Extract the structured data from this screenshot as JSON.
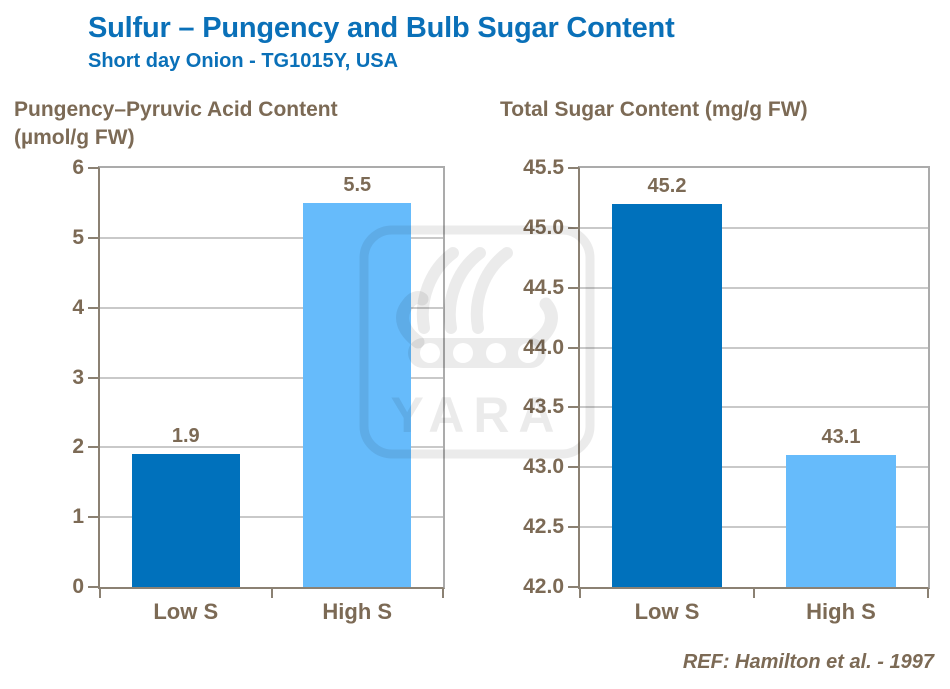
{
  "header": {
    "title": "Sulfur – Pungency and Bulb Sugar Content",
    "subtitle": "Short day Onion - TG1015Y, USA"
  },
  "footer": {
    "ref": "REF: Hamilton et al. - 1997"
  },
  "watermark": {
    "name": "yara-logo",
    "text": "YARA"
  },
  "colors": {
    "title_blue": "#0a70b8",
    "text_brown": "#7c6a55",
    "bar_dark_blue": "#0071bc",
    "bar_light_blue": "#66bbfb",
    "gridline": "#c9c9c9",
    "axis_line": "#8b8173",
    "border_light": "#ababab",
    "watermark_gray": "rgba(0,0,0,0.08)"
  },
  "chart_data": [
    {
      "type": "bar",
      "title": "Pungency–Pyruvic Acid Content",
      "title_line2": "(µmol/g FW)",
      "categories": [
        "Low S",
        "High S"
      ],
      "values": [
        1.9,
        5.5
      ],
      "data_labels": [
        "1.9",
        "5.5"
      ],
      "bar_colors": [
        "#0071bc",
        "#66bbfb"
      ],
      "ylim": [
        0,
        6
      ],
      "ytick_step": 1,
      "ytick_labels": [
        "0",
        "1",
        "2",
        "3",
        "4",
        "5",
        "6"
      ],
      "grid": true,
      "legend": "none"
    },
    {
      "type": "bar",
      "title": "Total Sugar Content (mg/g FW)",
      "title_line2": "",
      "categories": [
        "Low S",
        "High S"
      ],
      "values": [
        45.2,
        43.1
      ],
      "data_labels": [
        "45.2",
        "43.1"
      ],
      "bar_colors": [
        "#0071bc",
        "#66bbfb"
      ],
      "ylim": [
        42.0,
        45.5
      ],
      "ytick_step": 0.5,
      "ytick_labels": [
        "42.0",
        "42.5",
        "43.0",
        "43.5",
        "44.0",
        "44.5",
        "45.0",
        "45.5"
      ],
      "grid": true,
      "legend": "none"
    }
  ]
}
